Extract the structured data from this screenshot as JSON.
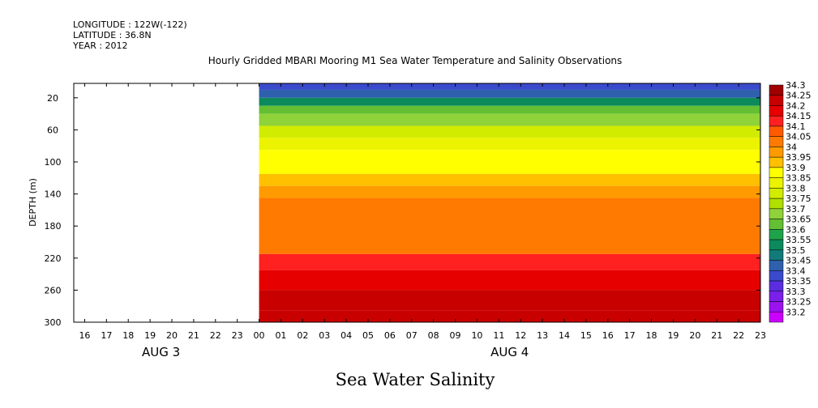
{
  "header": {
    "longitude": "LONGITUDE : 122W(-122)",
    "latitude": "LATITUDE : 36.8N",
    "year": "YEAR : 2012"
  },
  "chart_data": {
    "type": "heatmap",
    "title": "Hourly Gridded MBARI Mooring M1 Sea Water Temperature and Salinity Observations",
    "bottom_title": "Sea Water Salinity",
    "xlabel": "",
    "ylabel": "DEPTH (m)",
    "ylim": [
      300,
      2
    ],
    "y_inverted": true,
    "y_ticks": [
      20,
      60,
      100,
      140,
      180,
      220,
      260,
      300
    ],
    "x_hour_ticks": [
      "16",
      "17",
      "18",
      "19",
      "20",
      "21",
      "22",
      "23",
      "00",
      "01",
      "02",
      "03",
      "04",
      "05",
      "06",
      "07",
      "08",
      "09",
      "10",
      "11",
      "12",
      "13",
      "14",
      "15",
      "16",
      "17",
      "18",
      "19",
      "20",
      "21",
      "22",
      "23"
    ],
    "x_day_labels": [
      {
        "label": "AUG  3",
        "hour_index": 3.5
      },
      {
        "label": "AUG  4",
        "hour_index": 19.5
      }
    ],
    "data_start_hour_index": 8,
    "colorbar_levels": [
      "34.3",
      "34.25",
      "34.2",
      "34.15",
      "34.1",
      "34.05",
      "34",
      "33.95",
      "33.9",
      "33.85",
      "33.8",
      "33.75",
      "33.7",
      "33.65",
      "33.6",
      "33.55",
      "33.5",
      "33.45",
      "33.4",
      "33.35",
      "33.3",
      "33.25",
      "33.2"
    ],
    "colorbar_colors": [
      "#a00000",
      "#c80000",
      "#e60000",
      "#ff2020",
      "#ff5a00",
      "#ff7a00",
      "#ff9a00",
      "#ffc000",
      "#ffff00",
      "#ebf300",
      "#d2ec00",
      "#b0df00",
      "#8fd23a",
      "#64bf32",
      "#1fa34a",
      "#0c8a5c",
      "#127a7a",
      "#2e60ad",
      "#3a4acc",
      "#5a2ee0",
      "#7b1fea",
      "#9a12ee",
      "#cc00ff"
    ],
    "depth_profile": [
      {
        "depth": 2,
        "salinity": 33.4
      },
      {
        "depth": 10,
        "salinity": 33.45
      },
      {
        "depth": 20,
        "salinity": 33.55
      },
      {
        "depth": 30,
        "salinity": 33.65
      },
      {
        "depth": 40,
        "salinity": 33.72
      },
      {
        "depth": 55,
        "salinity": 33.8
      },
      {
        "depth": 70,
        "salinity": 33.85
      },
      {
        "depth": 85,
        "salinity": 33.9
      },
      {
        "depth": 100,
        "salinity": 33.93
      },
      {
        "depth": 115,
        "salinity": 33.97
      },
      {
        "depth": 130,
        "salinity": 34.02
      },
      {
        "depth": 145,
        "salinity": 34.07
      },
      {
        "depth": 200,
        "salinity": 34.09
      },
      {
        "depth": 215,
        "salinity": 34.15
      },
      {
        "depth": 235,
        "salinity": 34.2
      },
      {
        "depth": 260,
        "salinity": 34.27
      },
      {
        "depth": 285,
        "salinity": 34.25
      },
      {
        "depth": 300,
        "salinity": 34.22
      }
    ]
  }
}
